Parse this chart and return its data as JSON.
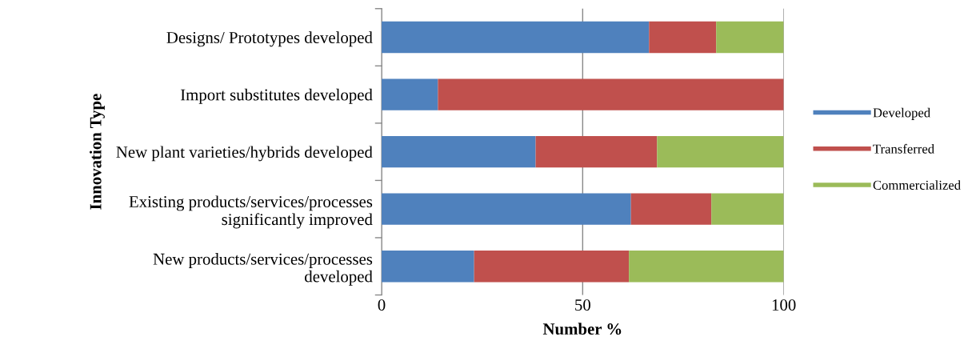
{
  "chart_data": {
    "type": "bar",
    "orientation": "horizontal",
    "stacked": true,
    "xlabel": "Number %",
    "ylabel": "Innovation Type",
    "categories": [
      "Designs/ Prototypes developed",
      "Import substitutes developed",
      "New plant varieties/hybrids developed",
      "Existing products/services/processes\nsignificantly improved",
      "New products/services/processes\ndeveloped"
    ],
    "series": [
      {
        "name": "Developed",
        "color": "#4f81bd",
        "values": [
          66.5,
          14,
          38.3,
          62,
          23
        ]
      },
      {
        "name": "Transferred",
        "color": "#c0504d",
        "values": [
          16.7,
          86,
          30.2,
          20,
          38.5
        ]
      },
      {
        "name": "Commercialized",
        "color": "#9bbb59",
        "values": [
          16.8,
          0,
          31.5,
          18,
          38.5
        ]
      }
    ],
    "xlim": [
      0,
      100
    ],
    "xticks": [
      0,
      50,
      100
    ],
    "grid": "x",
    "legend": "right"
  }
}
